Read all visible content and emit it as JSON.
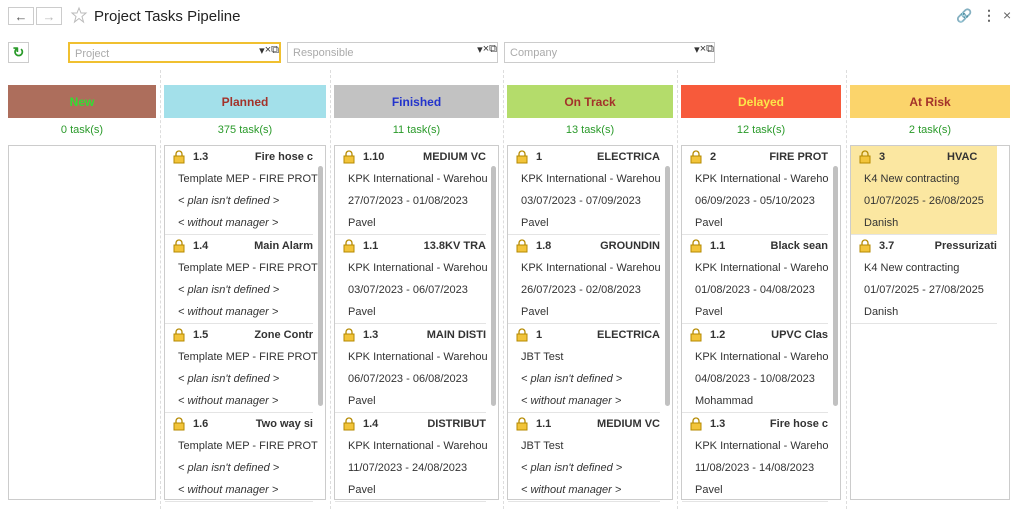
{
  "header": {
    "title": "Project Tasks Pipeline"
  },
  "filters": [
    "Project",
    "Responsible",
    "Company"
  ],
  "columns": [
    {
      "title": "New",
      "bg": "#ad6e5c",
      "fg": "#33dd33",
      "count": "0 task(s)",
      "cards": []
    },
    {
      "title": "Planned",
      "bg": "#a3e0ea",
      "fg": "#a3322a",
      "count": "375 task(s)",
      "cards": [
        {
          "num": "1.3",
          "name": "Fire hose c",
          "project": "Template MEP - FIRE PROT",
          "plan": "< plan isn't defined >",
          "manager": "< without manager >"
        },
        {
          "num": "1.4",
          "name": "Main Alarm",
          "project": "Template MEP - FIRE PROT",
          "plan": "< plan isn't defined >",
          "manager": "< without manager >"
        },
        {
          "num": "1.5",
          "name": "Zone Contr",
          "project": "Template MEP - FIRE PROT",
          "plan": "< plan isn't defined >",
          "manager": "< without manager >"
        },
        {
          "num": "1.6",
          "name": "Two way si",
          "project": "Template MEP - FIRE PROT",
          "plan": "< plan isn't defined >",
          "manager": "< without manager >"
        }
      ]
    },
    {
      "title": "Finished",
      "bg": "#c2c2c2",
      "fg": "#2233cc",
      "count": "11 task(s)",
      "cards": [
        {
          "num": "1.10",
          "name": "MEDIUM VC",
          "project": "KPK International - Warehou",
          "plan": "27/07/2023 - 01/08/2023",
          "manager": "Pavel"
        },
        {
          "num": "1.1",
          "name": "13.8KV TRA",
          "project": "KPK International - Warehou",
          "plan": "03/07/2023 - 06/07/2023",
          "manager": "Pavel"
        },
        {
          "num": "1.3",
          "name": "MAIN DISTI",
          "project": "KPK International - Warehou",
          "plan": "06/07/2023 - 06/08/2023",
          "manager": "Pavel"
        },
        {
          "num": "1.4",
          "name": "DISTRIBUT",
          "project": "KPK International - Warehou",
          "plan": "11/07/2023 - 24/08/2023",
          "manager": "Pavel"
        }
      ]
    },
    {
      "title": "On Track",
      "bg": "#b4dc6b",
      "fg": "#a3322a",
      "count": "13 task(s)",
      "cards": [
        {
          "num": "1",
          "name": "ELECTRICA",
          "project": "KPK International - Warehou",
          "plan": "03/07/2023 - 07/09/2023",
          "manager": "Pavel"
        },
        {
          "num": "1.8",
          "name": "GROUNDIN",
          "project": "KPK International - Warehou",
          "plan": "26/07/2023 - 02/08/2023",
          "manager": "Pavel"
        },
        {
          "num": "1",
          "name": "ELECTRICA",
          "project": "JBT Test",
          "plan": "< plan isn't defined >",
          "manager": "< without manager >"
        },
        {
          "num": "1.1",
          "name": "MEDIUM VC",
          "project": "JBT Test",
          "plan": "< plan isn't defined >",
          "manager": "< without manager >"
        }
      ]
    },
    {
      "title": "Delayed",
      "bg": "#f75a3b",
      "fg": "#fce64a",
      "count": "12 task(s)",
      "cards": [
        {
          "num": "2",
          "name": "FIRE PROT",
          "project": "KPK International - Wareho",
          "plan": "06/09/2023 - 05/10/2023",
          "manager": "Pavel"
        },
        {
          "num": "1.1",
          "name": "Black sean",
          "project": "KPK International - Wareho",
          "plan": "01/08/2023 - 04/08/2023",
          "manager": "Pavel"
        },
        {
          "num": "1.2",
          "name": "UPVC Clas",
          "project": "KPK International - Wareho",
          "plan": "04/08/2023 - 10/08/2023",
          "manager": "Mohammad"
        },
        {
          "num": "1.3",
          "name": "Fire hose c",
          "project": "KPK International - Wareho",
          "plan": "11/08/2023 - 14/08/2023",
          "manager": "Pavel"
        }
      ]
    },
    {
      "title": "At Risk",
      "bg": "#fbd46b",
      "fg": "#a3322a",
      "count": "2 task(s)",
      "cards": [
        {
          "num": "3",
          "name": "HVAC",
          "project": "K4 New contracting",
          "plan": "01/07/2025 - 26/08/2025",
          "manager": "Danish"
        },
        {
          "num": "3.7",
          "name": "Pressurizati",
          "project": "K4 New contracting",
          "plan": "01/07/2025 - 27/08/2025",
          "manager": "Danish"
        }
      ]
    }
  ]
}
